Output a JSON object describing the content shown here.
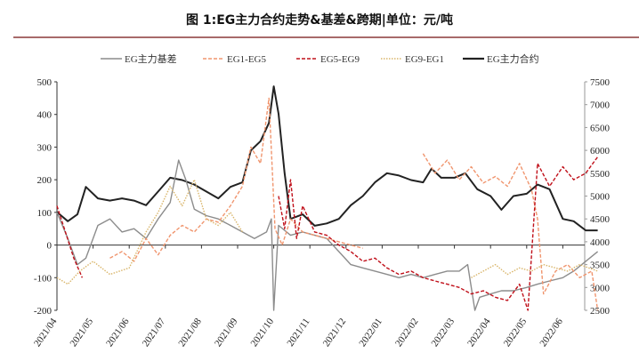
{
  "chart_data": {
    "type": "line",
    "title": "图 1:EG主力合约走势&基差&跨期|单位：元/吨",
    "legend_position": "top",
    "grid": false,
    "x_ticks": [
      "2021/04",
      "2021/05",
      "2021/06",
      "2021/07",
      "2021/08",
      "2021/09",
      "2021/10",
      "2021/11",
      "2021/12",
      "2022/01",
      "2022/02",
      "2022/03",
      "2022/04",
      "2022/05",
      "2022/06"
    ],
    "y_left": {
      "lim": [
        -200,
        500
      ],
      "ticks": [
        "500",
        "400",
        "300",
        "200",
        "100",
        "0",
        "-100",
        "-200"
      ]
    },
    "y_right": {
      "lim": [
        2500,
        7500
      ],
      "ticks": [
        "7500",
        "7000",
        "6500",
        "6000",
        "5500",
        "5000",
        "4500",
        "4000",
        "3500",
        "3000",
        "2500"
      ]
    },
    "series": [
      {
        "name": "EG主力基差",
        "axis": "left",
        "color": "#8c8c8c",
        "style": "solid",
        "x": [
          "2021-04-01",
          "2021-04-10",
          "2021-04-18",
          "2021-04-25",
          "2021-05-05",
          "2021-05-15",
          "2021-05-25",
          "2021-06-05",
          "2021-06-15",
          "2021-06-25",
          "2021-07-05",
          "2021-07-12",
          "2021-07-18",
          "2021-07-25",
          "2021-08-05",
          "2021-08-15",
          "2021-08-25",
          "2021-09-05",
          "2021-09-15",
          "2021-09-25",
          "2021-09-29",
          "2021-10-01",
          "2021-10-05",
          "2021-10-15",
          "2021-10-25",
          "2021-11-05",
          "2021-11-15",
          "2021-11-25",
          "2021-12-05",
          "2021-12-15",
          "2021-12-25",
          "2022-01-05",
          "2022-01-15",
          "2022-01-25",
          "2022-02-05",
          "2022-02-15",
          "2022-02-25",
          "2022-03-05",
          "2022-03-12",
          "2022-03-18",
          "2022-03-22",
          "2022-04-01",
          "2022-04-10",
          "2022-04-20",
          "2022-05-01",
          "2022-05-10",
          "2022-05-20",
          "2022-06-01",
          "2022-06-10",
          "2022-06-20",
          "2022-06-30"
        ],
        "y": [
          100,
          20,
          -60,
          -40,
          60,
          80,
          40,
          50,
          20,
          80,
          130,
          260,
          200,
          110,
          90,
          80,
          60,
          40,
          20,
          40,
          80,
          -200,
          60,
          30,
          40,
          30,
          20,
          -20,
          -60,
          -70,
          -80,
          -90,
          -100,
          -90,
          -100,
          -90,
          -80,
          -80,
          -60,
          -200,
          -160,
          -150,
          -140,
          -140,
          -130,
          -120,
          -110,
          -100,
          -80,
          -50,
          -20
        ]
      },
      {
        "name": "EG1-EG5",
        "axis": "left",
        "color": "#f0956e",
        "style": "dashed",
        "x": [
          "2021-05-15",
          "2021-05-25",
          "2021-06-05",
          "2021-06-15",
          "2021-06-25",
          "2021-07-05",
          "2021-07-15",
          "2021-07-25",
          "2021-08-05",
          "2021-08-15",
          "2021-08-25",
          "2021-09-05",
          "2021-09-12",
          "2021-09-20",
          "2021-09-27",
          "2021-10-02",
          "2021-10-08",
          "2021-10-15",
          "2021-10-25",
          "2021-11-05",
          "2021-11-15",
          "2021-11-25",
          "2021-12-05",
          "2021-12-15",
          null,
          "2022-02-05",
          "2022-02-15",
          "2022-02-25",
          "2022-03-05",
          "2022-03-15",
          "2022-03-25",
          "2022-04-05",
          "2022-04-15",
          "2022-04-25",
          "2022-05-05",
          "2022-05-10",
          "2022-05-15",
          "2022-05-25",
          "2022-06-05",
          "2022-06-15",
          "2022-06-25",
          "2022-06-30"
        ],
        "y": [
          -40,
          -20,
          -50,
          20,
          -30,
          30,
          60,
          40,
          80,
          70,
          120,
          180,
          300,
          250,
          450,
          50,
          0,
          80,
          40,
          30,
          20,
          10,
          0,
          -10,
          null,
          280,
          220,
          260,
          200,
          240,
          190,
          210,
          180,
          250,
          170,
          80,
          -150,
          -80,
          -60,
          -100,
          -80,
          -200
        ]
      },
      {
        "name": "EG5-EG9",
        "axis": "left",
        "color": "#c0101a",
        "style": "dashed",
        "x": [
          "2021-04-01",
          "2021-04-08",
          "2021-04-15",
          "2021-04-22",
          null,
          "2021-10-05",
          "2021-10-10",
          "2021-10-15",
          "2021-10-20",
          "2021-10-25",
          "2021-11-05",
          "2021-11-15",
          "2021-11-25",
          "2021-12-05",
          "2021-12-15",
          "2021-12-25",
          "2022-01-05",
          "2022-01-15",
          "2022-01-25",
          "2022-02-05",
          "2022-02-15",
          "2022-02-25",
          "2022-03-05",
          "2022-03-15",
          "2022-03-25",
          "2022-04-05",
          "2022-04-15",
          "2022-04-25",
          "2022-05-02",
          "2022-05-10",
          "2022-05-20",
          "2022-06-01",
          "2022-06-10",
          "2022-06-20",
          "2022-06-30"
        ],
        "y": [
          120,
          40,
          -40,
          -100,
          null,
          150,
          50,
          200,
          20,
          120,
          40,
          30,
          0,
          -20,
          -50,
          -40,
          -70,
          -90,
          -80,
          -100,
          -110,
          -120,
          -130,
          -150,
          -140,
          -160,
          -170,
          -120,
          -200,
          250,
          180,
          240,
          200,
          220,
          270
        ]
      },
      {
        "name": "EG9-EG1",
        "axis": "left",
        "color": "#d9b56a",
        "style": "dotted",
        "x": [
          "2021-04-01",
          "2021-04-10",
          "2021-04-20",
          "2021-05-01",
          "2021-05-15",
          "2021-06-01",
          "2021-06-15",
          "2021-06-25",
          "2021-07-05",
          "2021-07-15",
          "2021-07-25",
          "2021-08-05",
          "2021-08-15",
          "2021-08-25",
          "2021-09-05",
          null,
          "2022-03-15",
          "2022-03-25",
          "2022-04-05",
          "2022-04-15",
          "2022-04-25",
          "2022-05-05",
          "2022-05-15",
          "2022-05-25",
          "2022-06-05",
          "2022-06-15",
          "2022-06-30"
        ],
        "y": [
          -100,
          -120,
          -80,
          -50,
          -90,
          -70,
          40,
          100,
          180,
          120,
          200,
          80,
          60,
          100,
          40,
          null,
          -100,
          -80,
          -60,
          -90,
          -70,
          -80,
          -60,
          -70,
          -80,
          -60,
          -80
        ]
      },
      {
        "name": "EG主力合约",
        "axis": "right",
        "color": "#222222",
        "style": "solid",
        "x": [
          "2021-04-01",
          "2021-04-10",
          "2021-04-18",
          "2021-04-25",
          "2021-05-05",
          "2021-05-15",
          "2021-05-25",
          "2021-06-05",
          "2021-06-15",
          "2021-06-25",
          "2021-07-05",
          "2021-07-15",
          "2021-07-25",
          "2021-08-05",
          "2021-08-15",
          "2021-08-25",
          "2021-09-05",
          "2021-09-12",
          "2021-09-20",
          "2021-09-27",
          "2021-10-01",
          "2021-10-05",
          "2021-10-10",
          "2021-10-15",
          "2021-10-25",
          "2021-11-05",
          "2021-11-15",
          "2021-11-25",
          "2021-12-05",
          "2021-12-15",
          "2021-12-25",
          "2022-01-05",
          "2022-01-15",
          "2022-01-25",
          "2022-02-05",
          "2022-02-12",
          "2022-02-20",
          "2022-03-01",
          "2022-03-10",
          "2022-03-20",
          "2022-04-01",
          "2022-04-10",
          "2022-04-20",
          "2022-05-01",
          "2022-05-10",
          "2022-05-20",
          "2022-06-01",
          "2022-06-10",
          "2022-06-20",
          "2022-06-30"
        ],
        "y": [
          4650,
          4450,
          4600,
          5200,
          4950,
          4900,
          4950,
          4900,
          4800,
          5100,
          5400,
          5350,
          5250,
          5100,
          4950,
          5200,
          5300,
          6000,
          6200,
          6600,
          7400,
          6800,
          5500,
          4500,
          4600,
          4350,
          4400,
          4500,
          4800,
          5000,
          5300,
          5500,
          5450,
          5350,
          5300,
          5600,
          5400,
          5400,
          5500,
          5150,
          5000,
          4700,
          5000,
          5050,
          5250,
          5150,
          4500,
          4450,
          4250,
          4250
        ]
      }
    ]
  }
}
